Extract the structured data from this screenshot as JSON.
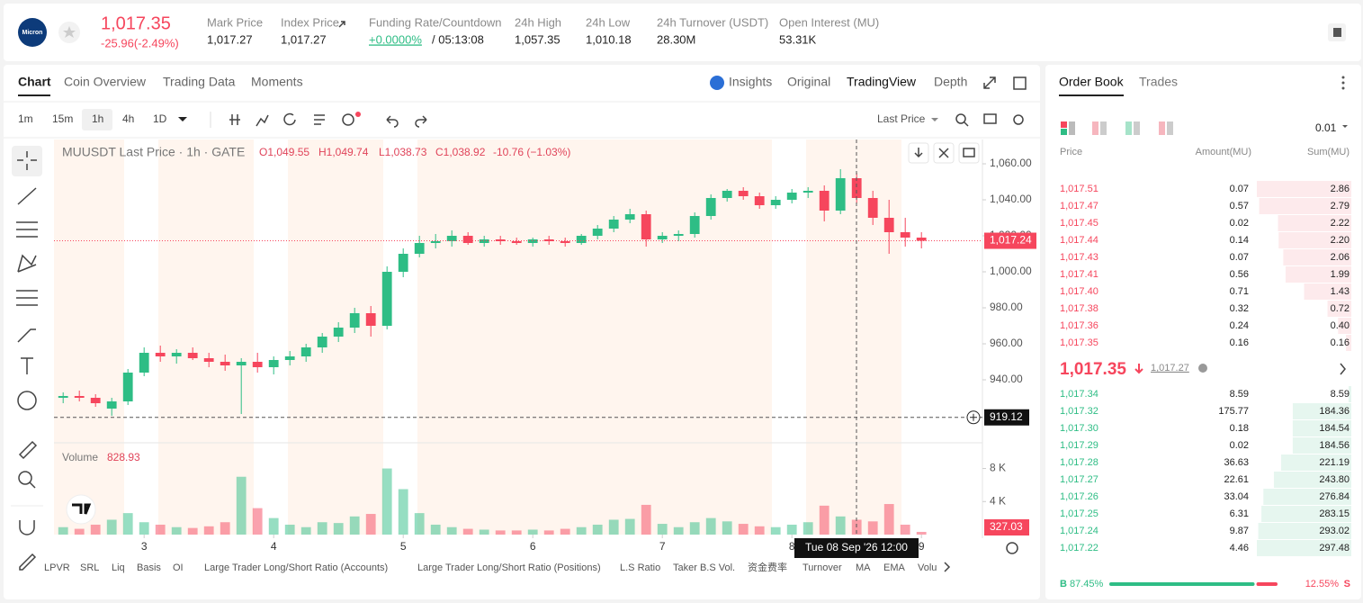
{
  "header": {
    "logo": "Micron",
    "price": "1,017.35",
    "change": "-25.96(-2.49%)",
    "stats": [
      {
        "label": "Mark Price",
        "value": "1,017.27"
      },
      {
        "label": "Index Price",
        "value": "1,017.27"
      },
      {
        "label": "Funding Rate/Countdown",
        "value": "+0.0000%",
        "extra": "/ 05:13:08"
      },
      {
        "label": "24h High",
        "value": "1,057.35"
      },
      {
        "label": "24h Low",
        "value": "1,010.18"
      },
      {
        "label": "24h Turnover (USDT)",
        "value": "28.30M"
      },
      {
        "label": "Open Interest (MU)",
        "value": "53.31K"
      }
    ]
  },
  "tabs": [
    "Chart",
    "Coin Overview",
    "Trading Data",
    "Moments"
  ],
  "views": [
    "Insights",
    "Original",
    "TradingView",
    "Depth"
  ],
  "intervals": [
    "1m",
    "15m",
    "1h",
    "4h",
    "1D"
  ],
  "price_type": "Last Price",
  "chart_data": {
    "type": "candlestick",
    "title": "MUUSDT Last Price · 1h · GATE",
    "ohlc_legend": [
      "O1,049.55",
      "H1,049.74",
      "L1,038.73",
      "C1,038.92",
      "-10.76 (−1.03%)"
    ],
    "x": [
      -15,
      -12,
      -9,
      -6,
      -3,
      0,
      3,
      6,
      9,
      12,
      15,
      18,
      21,
      24,
      27,
      30,
      33,
      36,
      39,
      42,
      45,
      48,
      51,
      54,
      57,
      60,
      63,
      66,
      69,
      72,
      75,
      78,
      81,
      84,
      87,
      90,
      93,
      96,
      99,
      102,
      105,
      108,
      111,
      114,
      117,
      120,
      123,
      126,
      129,
      132,
      135,
      138,
      141,
      144
    ],
    "open": [
      930,
      931,
      930,
      924,
      928,
      944,
      955,
      953,
      955,
      952,
      950,
      948,
      950,
      947,
      951,
      953,
      958,
      964,
      969,
      977,
      970,
      1000,
      1010,
      1016,
      1017,
      1020,
      1016,
      1018,
      1017,
      1016,
      1018,
      1017,
      1016,
      1020,
      1024,
      1029,
      1032,
      1018,
      1020,
      1021,
      1031,
      1041,
      1045,
      1042,
      1037,
      1040,
      1044,
      1045,
      1034,
      1052,
      1041,
      1030,
      1022,
      1019
    ],
    "high": [
      933,
      934,
      932,
      930,
      946,
      958,
      959,
      957,
      958,
      955,
      954,
      952,
      955,
      953,
      956,
      960,
      966,
      972,
      980,
      981,
      1003,
      1013,
      1020,
      1021,
      1023,
      1022,
      1020,
      1020,
      1019,
      1019,
      1020,
      1019,
      1021,
      1026,
      1031,
      1035,
      1034,
      1022,
      1023,
      1033,
      1043,
      1046,
      1047,
      1044,
      1042,
      1046,
      1047,
      1048,
      1057,
      1055,
      1045,
      1040,
      1030,
      1022
    ],
    "low": [
      927,
      928,
      925,
      920,
      926,
      942,
      950,
      949,
      951,
      947,
      945,
      921,
      944,
      943,
      948,
      950,
      955,
      961,
      966,
      964,
      968,
      997,
      1008,
      1013,
      1014,
      1015,
      1014,
      1015,
      1015,
      1014,
      1015,
      1014,
      1015,
      1018,
      1022,
      1027,
      1014,
      1016,
      1017,
      1019,
      1029,
      1039,
      1040,
      1035,
      1035,
      1038,
      1041,
      1028,
      1032,
      1038,
      1026,
      1010,
      1014,
      1013
    ],
    "close": [
      931,
      930,
      927,
      928,
      944,
      955,
      953,
      955,
      952,
      950,
      948,
      950,
      947,
      951,
      953,
      958,
      964,
      969,
      977,
      970,
      1000,
      1010,
      1016,
      1017,
      1020,
      1016,
      1018,
      1017,
      1016,
      1018,
      1017,
      1016,
      1020,
      1024,
      1029,
      1032,
      1018,
      1020,
      1021,
      1031,
      1041,
      1045,
      1042,
      1037,
      1040,
      1044,
      1045,
      1034,
      1052,
      1041,
      1030,
      1022,
      1019,
      1017.24
    ],
    "up_color": "#2ebd85",
    "down_color": "#f6465d",
    "xlim": [
      -16.7,
      155.3
    ],
    "xticks": [
      {
        "value": 0,
        "label": "3"
      },
      {
        "value": 24,
        "label": "4"
      },
      {
        "value": 48,
        "label": "5"
      },
      {
        "value": 72,
        "label": "6"
      },
      {
        "value": 96,
        "label": "7"
      },
      {
        "value": 120,
        "label": "8"
      },
      {
        "value": 144,
        "label": "9"
      }
    ],
    "ylim": [
      905,
      1073.5
    ],
    "yticks": [
      {
        "value": 940,
        "label": "940.00"
      },
      {
        "value": 960,
        "label": "960.00"
      },
      {
        "value": 980,
        "label": "980.00"
      },
      {
        "value": 1000,
        "label": "1,000.00"
      },
      {
        "value": 1020,
        "label": "1,020.00"
      },
      {
        "value": 1040,
        "label": "1,040.00"
      },
      {
        "value": 1060,
        "label": "1,060.00"
      }
    ],
    "last_price": {
      "value": 1017.24,
      "label": "1,017.24"
    },
    "crosshair_price": 919.12,
    "crosshair_time": "Tue 08 Sep '26 12:00",
    "volume": {
      "label": "Volume",
      "legend_value": 828.93,
      "values": [
        900,
        700,
        1200,
        1800,
        2600,
        1500,
        1200,
        900,
        800,
        1000,
        1500,
        7000,
        3200,
        2000,
        1200,
        900,
        1500,
        1400,
        2200,
        2500,
        8000,
        5500,
        2600,
        1200,
        900,
        700,
        600,
        500,
        500,
        600,
        500,
        700,
        900,
        1200,
        1800,
        1900,
        3600,
        1300,
        900,
        1500,
        2000,
        1600,
        1300,
        1000,
        900,
        1200,
        1500,
        3500,
        2200,
        1800,
        1600,
        3700,
        1200,
        327.03
      ],
      "ylim": [
        0,
        11000
      ],
      "yticks": [
        {
          "value": 4000,
          "label": "4 K"
        },
        {
          "value": 8000,
          "label": "8 K"
        }
      ]
    }
  },
  "bottom_indicators": [
    "LPVR",
    "SRL",
    "Liq",
    "Basis",
    "OI",
    "Large Trader Long/Short Ratio (Accounts)",
    "Large Trader Long/Short Ratio (Positions)",
    "L.S Ratio",
    "Taker B.S Vol.",
    "资金费率",
    "Turnover",
    "MA",
    "EMA",
    "Volu"
  ],
  "order_book": {
    "tabs": [
      "Order Book",
      "Trades"
    ],
    "precision": "0.01",
    "columns": [
      "Price",
      "Amount(MU)",
      "Sum(MU)"
    ],
    "asks": [
      {
        "price": "1,017.51",
        "amount": "0.07",
        "sum": 2.86
      },
      {
        "price": "1,017.47",
        "amount": "0.57",
        "sum": 2.79
      },
      {
        "price": "1,017.45",
        "amount": "0.02",
        "sum": 2.22
      },
      {
        "price": "1,017.44",
        "amount": "0.14",
        "sum": {
          "value": 2.2,
          "label": "2.20"
        }
      },
      {
        "price": "1,017.43",
        "amount": "0.07",
        "sum": 2.06
      },
      {
        "price": "1,017.41",
        "amount": "0.56",
        "sum": 1.99
      },
      {
        "price": "1,017.40",
        "amount": "0.71",
        "sum": 1.43
      },
      {
        "price": "1,017.38",
        "amount": "0.32",
        "sum": 0.72
      },
      {
        "price": "1,017.36",
        "amount": "0.24",
        "sum": {
          "value": 0.4,
          "label": "0.40"
        }
      },
      {
        "price": "1,017.35",
        "amount": "0.16",
        "sum": 0.16
      }
    ],
    "last_price": "1,017.35",
    "index_price": "1,017.27",
    "bids": [
      {
        "price": "1,017.34",
        "amount": "8.59",
        "sum": 8.59
      },
      {
        "price": "1,017.32",
        "amount": "175.77",
        "sum": 184.36
      },
      {
        "price": "1,017.30",
        "amount": "0.18",
        "sum": 184.54
      },
      {
        "price": "1,017.29",
        "amount": "0.02",
        "sum": 184.56
      },
      {
        "price": "1,017.28",
        "amount": "36.63",
        "sum": 221.19
      },
      {
        "price": "1,017.27",
        "amount": "22.61",
        "sum": {
          "value": 243.8,
          "label": "243.80"
        }
      },
      {
        "price": "1,017.26",
        "amount": "33.04",
        "sum": 276.84
      },
      {
        "price": "1,017.25",
        "amount": "6.31",
        "sum": 283.15
      },
      {
        "price": "1,017.24",
        "amount": "9.87",
        "sum": 293.02
      },
      {
        "price": "1,017.22",
        "amount": "4.46",
        "sum": 297.48
      }
    ],
    "buy_label": "B",
    "sell_label": "S",
    "buy_ratio": {
      "value": 87.45,
      "label": "87.45%"
    },
    "sell_ratio": {
      "value": 12.55,
      "label": "12.55%"
    }
  }
}
